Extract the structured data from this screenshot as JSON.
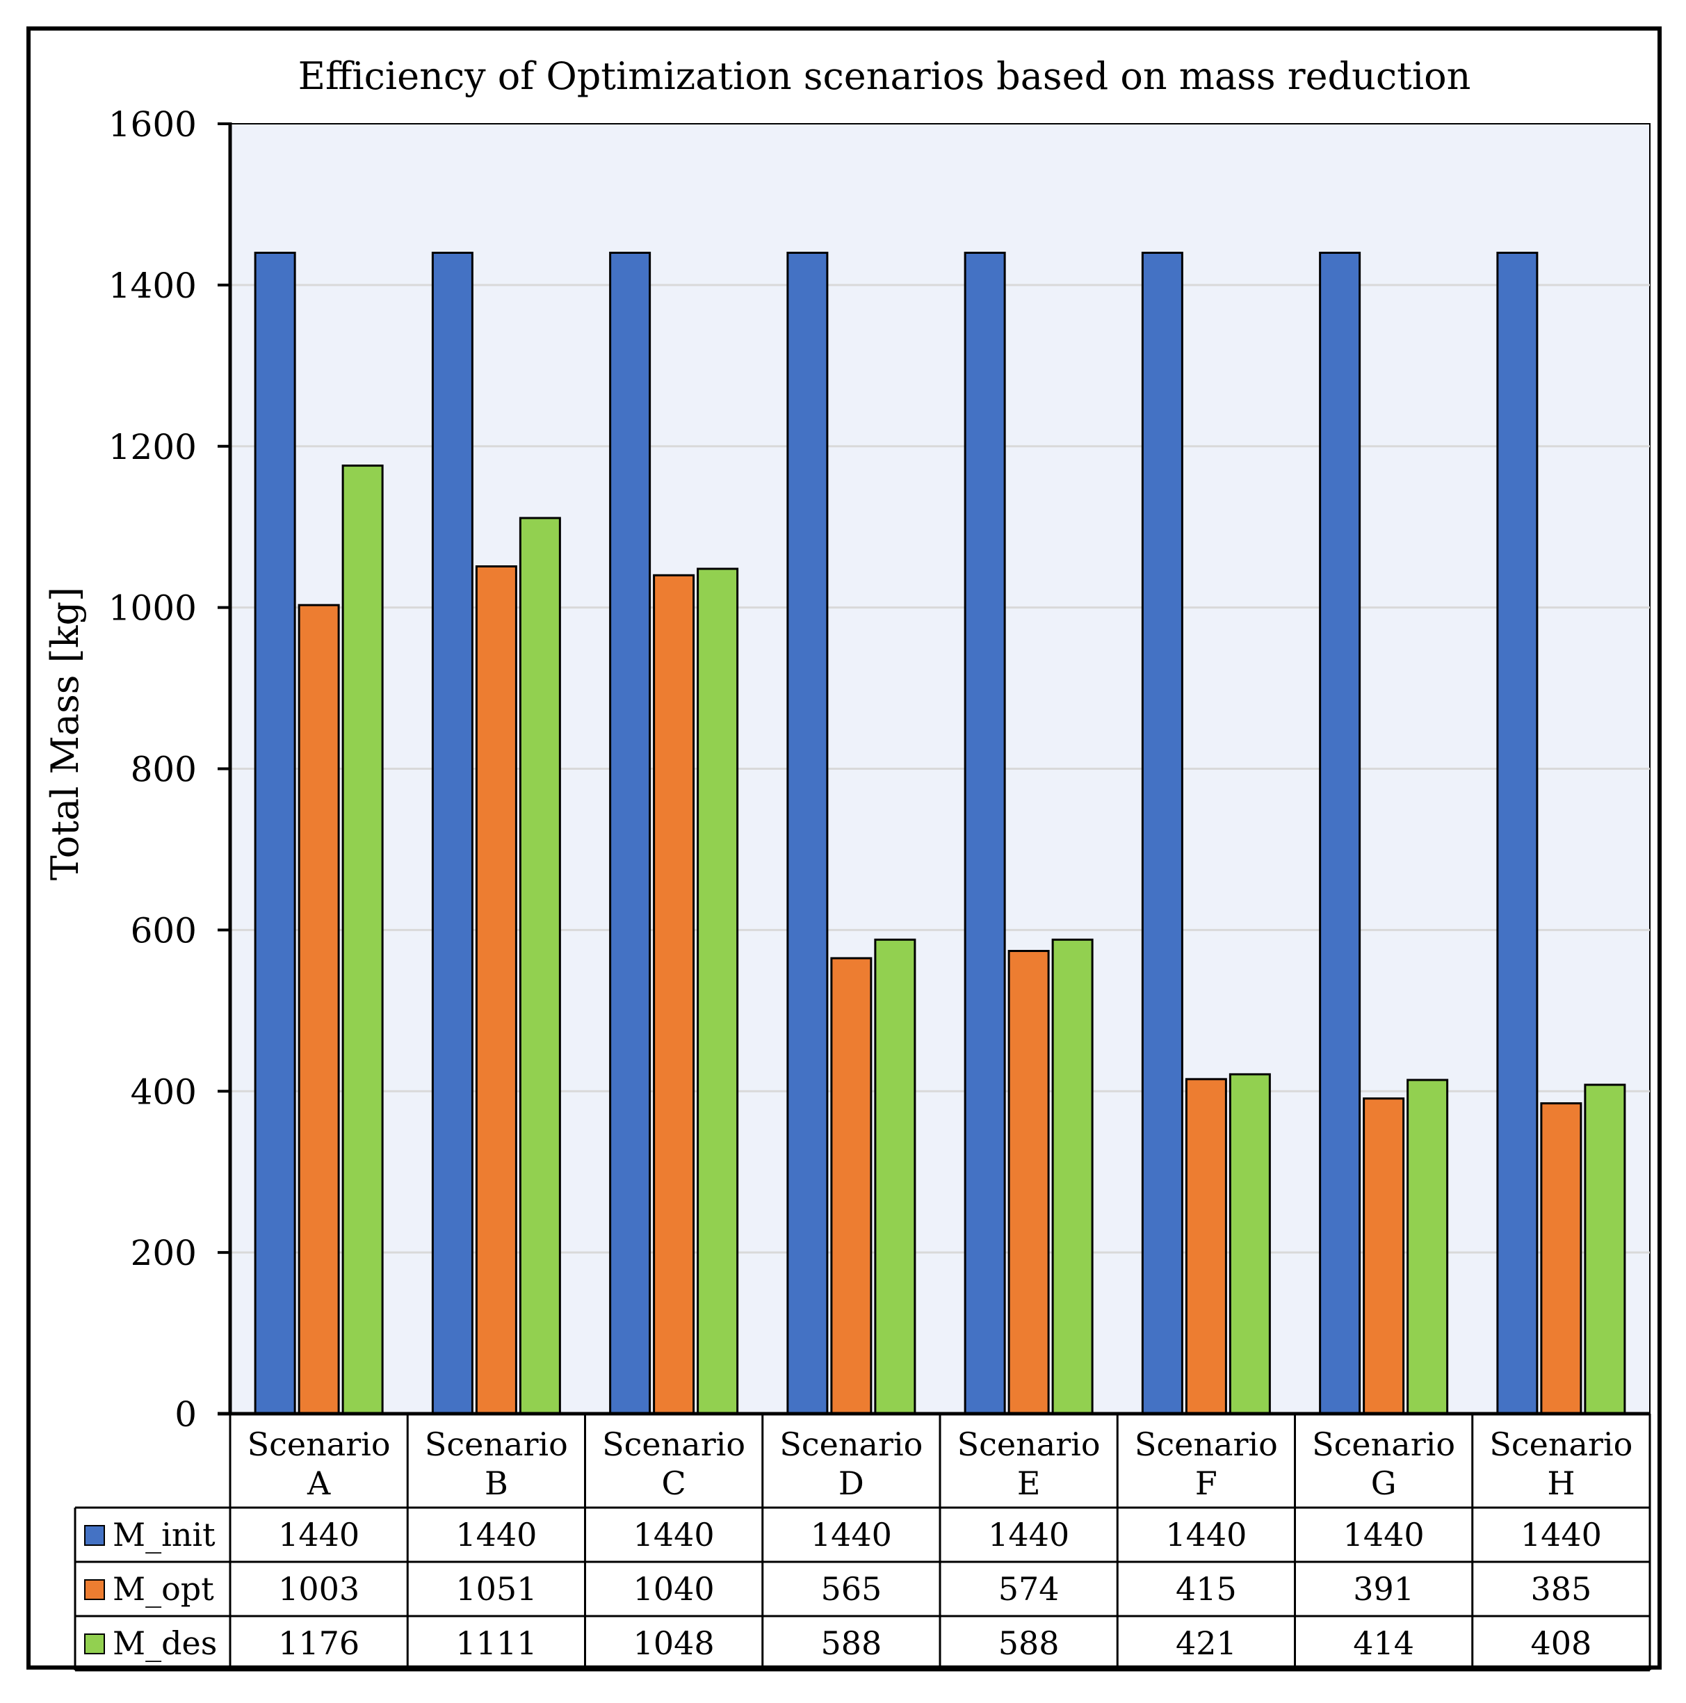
{
  "chart_data": {
    "type": "bar",
    "title": "Efficiency of Optimization scenarios based on mass reduction",
    "xlabel": "",
    "ylabel": "Total Mass [kg]",
    "ylim": [
      0,
      1600
    ],
    "yticks": [
      0,
      200,
      400,
      600,
      800,
      1000,
      1200,
      1400,
      1600
    ],
    "grid": true,
    "legend_placement": "data-table",
    "categories": [
      [
        "Scenario",
        "A"
      ],
      [
        "Scenario",
        "B"
      ],
      [
        "Scenario",
        "C"
      ],
      [
        "Scenario",
        "D"
      ],
      [
        "Scenario",
        "E"
      ],
      [
        "Scenario",
        "F"
      ],
      [
        "Scenario",
        "G"
      ],
      [
        "Scenario",
        "H"
      ]
    ],
    "series": [
      {
        "name": "M_init",
        "color": "#4472C4",
        "values": [
          1440,
          1440,
          1440,
          1440,
          1440,
          1440,
          1440,
          1440
        ]
      },
      {
        "name": "M_opt",
        "color": "#ED7D31",
        "values": [
          1003,
          1051,
          1040,
          565,
          574,
          415,
          391,
          385
        ]
      },
      {
        "name": "M_des",
        "color": "#92D050",
        "values": [
          1176,
          1111,
          1048,
          588,
          588,
          421,
          414,
          408
        ]
      }
    ],
    "plot_background": "#EEF2FA",
    "gridline_color": "#D9D9D9"
  }
}
